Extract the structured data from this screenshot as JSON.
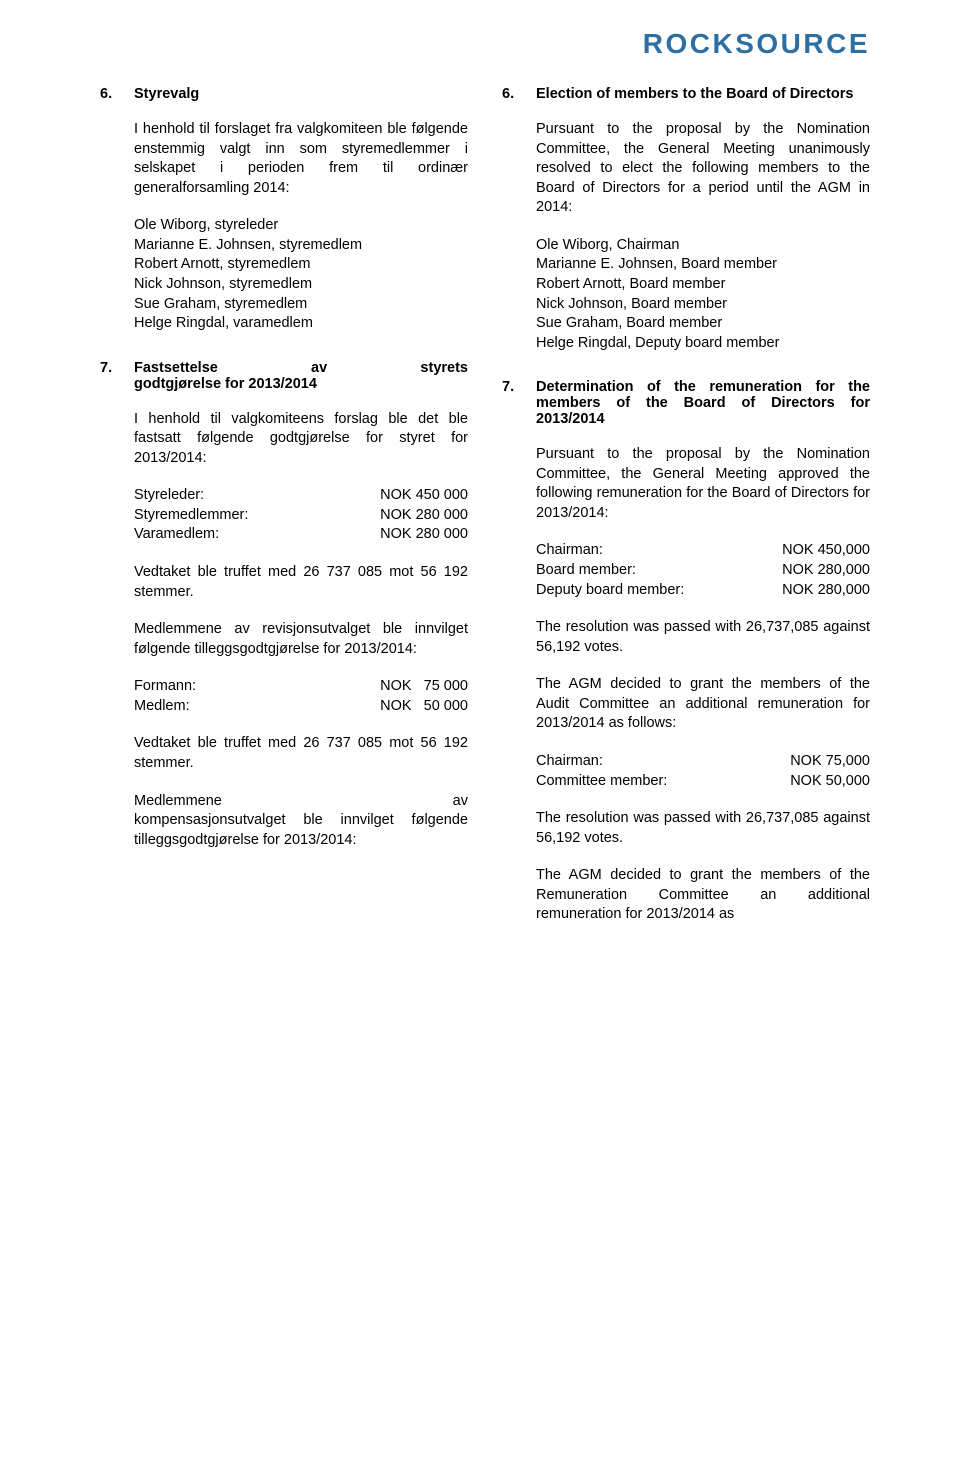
{
  "brand": "ROCKSOURCE",
  "brand_color": "#2E6FA3",
  "left": {
    "sec6": {
      "num": "6.",
      "title": "Styrevalg",
      "para": "I henhold til forslaget fra valgkomiteen ble følgende enstemmig valgt inn som styremedlemmer i selskapet i perioden frem til ordinær generalforsamling 2014:",
      "members": [
        "Ole Wiborg, styreleder",
        "Marianne E. Johnsen, styremedlem",
        "Robert Arnott, styremedlem",
        "Nick Johnson, styremedlem",
        "Sue Graham, styremedlem",
        "Helge Ringdal, varamedlem"
      ]
    },
    "sec7": {
      "num": "7.",
      "title": "Fastsettelse av styrets godtgjørelse for 2013/2014",
      "para1": "I henhold til valgkomiteens forslag ble det ble fastsatt følgende godtgjørelse for styret for 2013/2014:",
      "fees1": [
        {
          "label": "Styreleder:",
          "val": "NOK 450 000"
        },
        {
          "label": "Styremedlemmer:",
          "val": "NOK 280 000"
        },
        {
          "label": "Varamedlem:",
          "val": "NOK 280 000"
        }
      ],
      "para2": "Vedtaket ble truffet med 26 737 085 mot 56 192 stemmer.",
      "para3": "Medlemmene av revisjonsutvalget ble innvilget følgende tilleggsgodtgjørelse for 2013/2014:",
      "fees2": [
        {
          "label": "Formann:",
          "val": "NOK   75 000"
        },
        {
          "label": "Medlem:",
          "val": "NOK   50 000"
        }
      ],
      "para4": "Vedtaket ble truffet med 26 737 085 mot 56 192 stemmer.",
      "para5": "Medlemmene av kompensasjonsutvalget ble innvilget følgende tilleggsgodtgjørelse for 2013/2014:"
    }
  },
  "right": {
    "sec6": {
      "num": "6.",
      "title": "Election of members to the Board of Directors",
      "para": "Pursuant to the proposal by the Nomination Committee, the General Meeting unanimously resolved to elect the following members to the Board of Directors for a period until the AGM in 2014:",
      "members": [
        "Ole Wiborg, Chairman",
        "Marianne E. Johnsen, Board member",
        "Robert Arnott, Board member",
        "Nick Johnson, Board member",
        "Sue Graham, Board member",
        "Helge Ringdal, Deputy board member"
      ]
    },
    "sec7": {
      "num": "7.",
      "title": "Determination of the remuneration for the members of the Board of Directors for 2013/2014",
      "para1": "Pursuant to the proposal by the Nomination Committee, the General Meeting approved the following remuneration for the Board of Directors for 2013/2014:",
      "fees1": [
        {
          "label": "Chairman:",
          "val": "NOK 450,000"
        },
        {
          "label": "Board member:",
          "val": "NOK 280,000"
        },
        {
          "label": "Deputy board member:",
          "val": "NOK 280,000"
        }
      ],
      "para2": "The resolution was passed with 26,737,085 against 56,192 votes.",
      "para3": "The AGM decided to grant the members of the Audit Committee an additional remuneration for 2013/2014 as follows:",
      "fees2": [
        {
          "label": "Chairman:",
          "val": "NOK 75,000"
        },
        {
          "label": "Committee member:",
          "val": "NOK 50,000"
        }
      ],
      "para4": "The resolution was passed with 26,737,085 against 56,192 votes.",
      "para5": "The AGM decided to grant the members of the Remuneration Committee an additional remuneration for 2013/2014 as"
    }
  }
}
